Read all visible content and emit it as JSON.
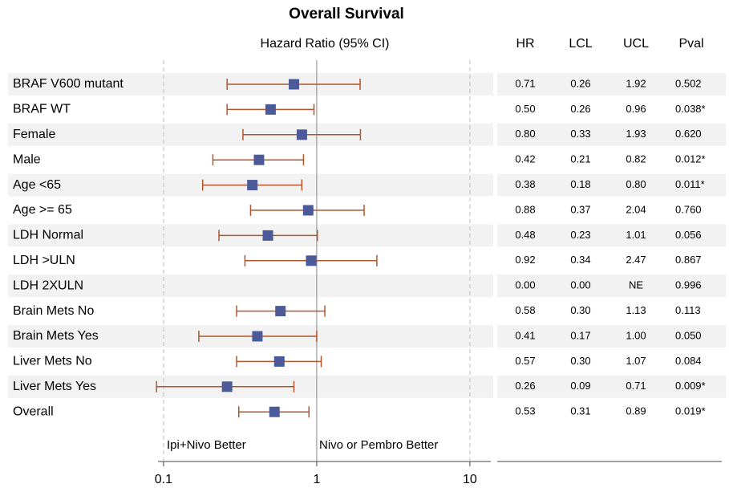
{
  "chart_data": {
    "type": "forest",
    "title": "Overall Survival",
    "subtitle": "Hazard Ratio (95% CI)",
    "categories": [
      "BRAF V600 mutant",
      "BRAF WT",
      "Female",
      "Male",
      "Age <65",
      "Age >= 65",
      "LDH Normal",
      "LDH >ULN",
      "LDH 2XULN",
      "Brain Mets No",
      "Brain Mets Yes",
      "Liver Mets No",
      "Liver Mets Yes",
      "Overall"
    ],
    "series": [
      {
        "name": "HR",
        "color": "#4c5a9a",
        "values": [
          0.71,
          0.5,
          0.8,
          0.42,
          0.38,
          0.88,
          0.48,
          0.92,
          0,
          0.58,
          0.41,
          0.57,
          0.26,
          0.53
        ],
        "value_labels": [
          "0.71",
          "0.50",
          "0.80",
          "0.42",
          "0.38",
          "0.88",
          "0.48",
          "0.92",
          "0.00",
          "0.58",
          "0.41",
          "0.57",
          "0.26",
          "0.53"
        ]
      },
      {
        "name": "LCL",
        "color": "#b0562a",
        "values": [
          0.26,
          0.26,
          0.33,
          0.21,
          0.18,
          0.37,
          0.23,
          0.34,
          0,
          0.3,
          0.17,
          0.3,
          0.09,
          0.31
        ],
        "value_labels": [
          "0.26",
          "0.26",
          "0.33",
          "0.21",
          "0.18",
          "0.37",
          "0.23",
          "0.34",
          "0.00",
          "0.30",
          "0.17",
          "0.30",
          "0.09",
          "0.31"
        ]
      },
      {
        "name": "UCL",
        "color": "#b0562a",
        "values": [
          1.92,
          0.96,
          1.93,
          0.82,
          0.8,
          2.04,
          1.01,
          2.47,
          null,
          1.13,
          1,
          1.07,
          0.71,
          0.89
        ],
        "value_labels": [
          "1.92",
          "0.96",
          "1.93",
          "0.82",
          "0.80",
          "2.04",
          "1.01",
          "2.47",
          "NE",
          "1.13",
          "1.00",
          "1.07",
          "0.71",
          "0.89"
        ]
      }
    ],
    "pvalue_header": "Pval",
    "pvalues": [
      "0.502",
      "0.038*",
      "0.620",
      "0.012*",
      "0.011*",
      "0.760",
      "0.056",
      "0.867",
      "0.996",
      "0.113",
      "0.050",
      "0.084",
      "0.009*",
      "0.019*"
    ],
    "annotations": [
      "Ipi+Nivo Better",
      "Nivo or Pembro Better"
    ],
    "xscale": "log",
    "xlim": [
      0.092,
      13.7
    ],
    "xticks": [
      {
        "value": 0.1,
        "label": "0.1"
      },
      1,
      10
    ],
    "reference": 1,
    "grid": true
  }
}
